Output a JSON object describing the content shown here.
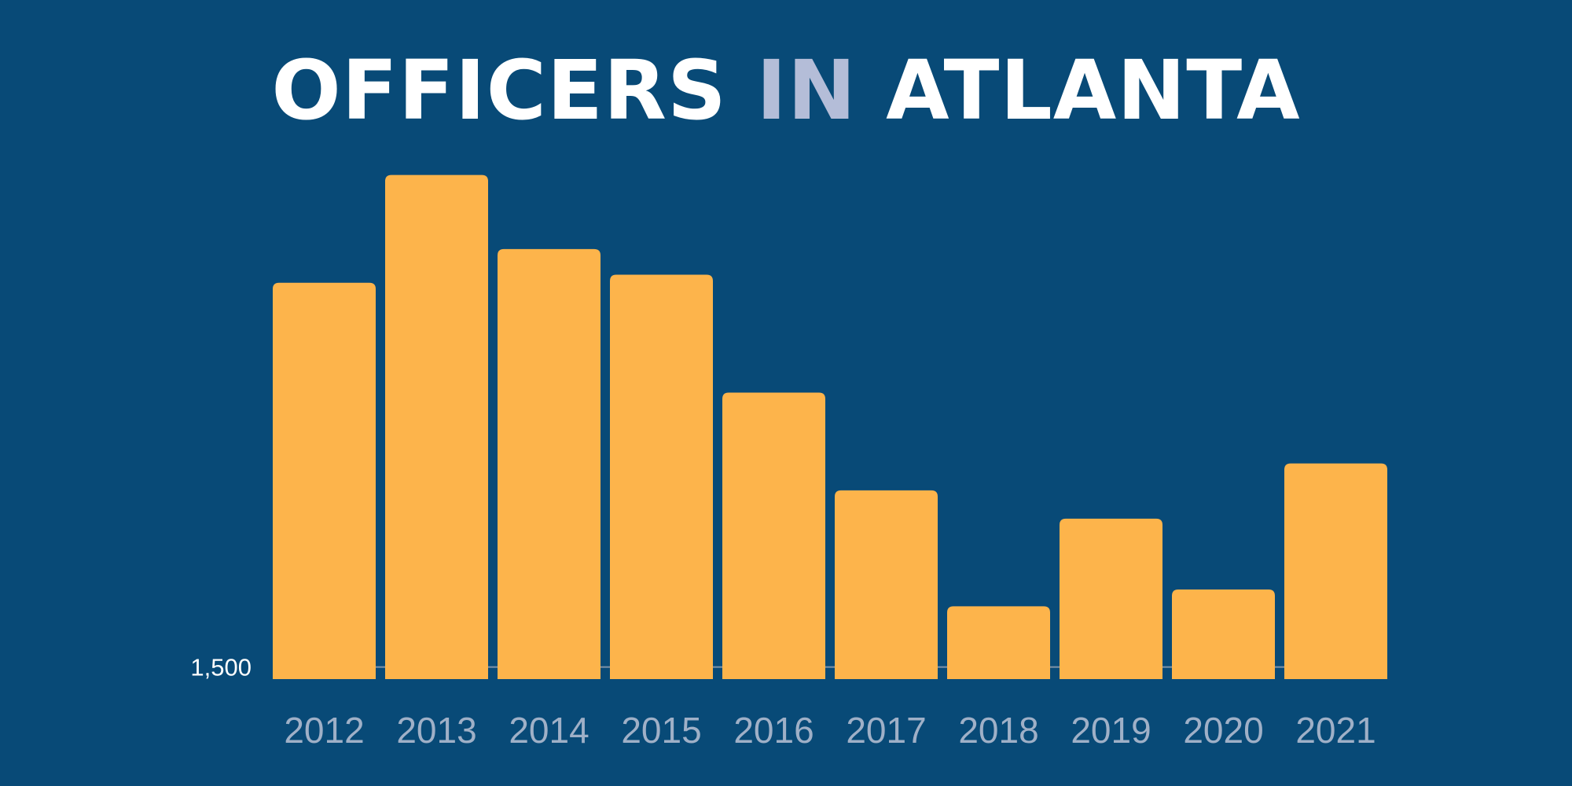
{
  "title": {
    "part1": "OFFICERS",
    "part2": "IN",
    "part3": "ATLANTA"
  },
  "colors": {
    "background": "#084a77",
    "bar": "#fdb44b",
    "title_accent": "#b4bdd8",
    "baseline": "#7f93a8"
  },
  "chart_data": {
    "type": "bar",
    "categories": [
      "2012",
      "2013",
      "2014",
      "2015",
      "2016",
      "2017",
      "2018",
      "2019",
      "2020",
      "2021"
    ],
    "values": [
      2070,
      2230,
      2120,
      2082,
      1907,
      1762,
      1590,
      1720,
      1615,
      1802
    ],
    "y_tick_labels": [
      "1,500"
    ],
    "y_ticks": [
      1500
    ],
    "ylim": [
      1482,
      2240
    ],
    "xlabel": "",
    "ylabel": "",
    "grid": false
  }
}
